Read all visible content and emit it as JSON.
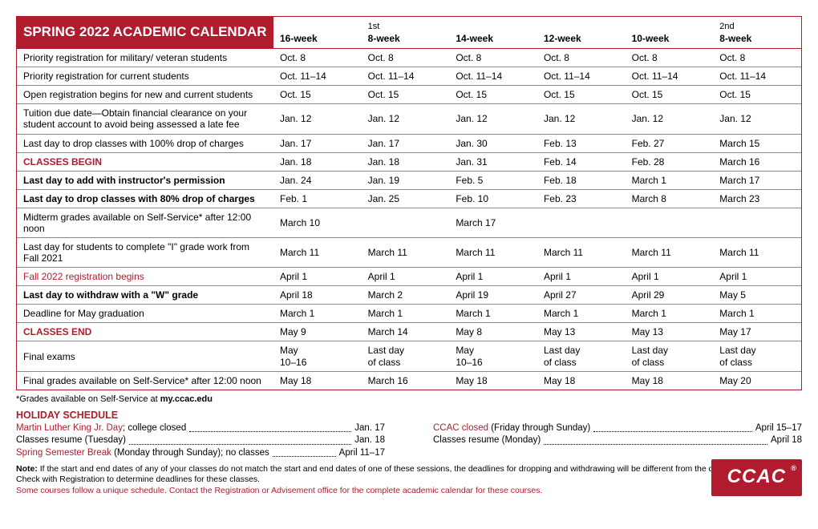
{
  "title": "SPRING 2022 ACADEMIC CALENDAR",
  "columns": [
    {
      "sup": "",
      "label": "16-week"
    },
    {
      "sup": "1st",
      "label": "8-week"
    },
    {
      "sup": "",
      "label": "14-week"
    },
    {
      "sup": "",
      "label": "12-week"
    },
    {
      "sup": "",
      "label": "10-week"
    },
    {
      "sup": "2nd",
      "label": "8-week"
    }
  ],
  "rows": [
    {
      "desc": "Priority registration for military/ veteran students",
      "vals": [
        "Oct. 8",
        "Oct. 8",
        "Oct. 8",
        "Oct. 8",
        "Oct. 8",
        "Oct. 8"
      ]
    },
    {
      "desc": "Priority registration for current students",
      "vals": [
        "Oct. 11–14",
        "Oct. 11–14",
        "Oct. 11–14",
        "Oct. 11–14",
        "Oct. 11–14",
        "Oct. 11–14"
      ]
    },
    {
      "desc": "Open registration begins for new and current students",
      "vals": [
        "Oct. 15",
        "Oct. 15",
        "Oct. 15",
        "Oct. 15",
        "Oct. 15",
        "Oct. 15"
      ]
    },
    {
      "desc": "Tuition due date—Obtain financial clearance on your student account to avoid being assessed a late fee",
      "vals": [
        "Jan. 12",
        "Jan. 12",
        "Jan. 12",
        "Jan. 12",
        "Jan. 12",
        "Jan. 12"
      ],
      "wrap": true
    },
    {
      "desc": "Last day to drop classes with 100% drop of charges",
      "vals": [
        "Jan. 17",
        "Jan. 17",
        "Jan. 30",
        "Feb. 13",
        "Feb. 27",
        "March 15"
      ]
    },
    {
      "desc": "CLASSES BEGIN",
      "style": "red-bold",
      "vals": [
        "Jan. 18",
        "Jan. 18",
        "Jan. 31",
        "Feb. 14",
        "Feb. 28",
        "March 16"
      ]
    },
    {
      "desc": "Last day to add with instructor's permission",
      "style": "bold",
      "vals": [
        "Jan. 24",
        "Jan. 19",
        "Feb. 5",
        "Feb. 18",
        "March 1",
        "March 17"
      ]
    },
    {
      "desc": "Last day to drop classes with 80% drop of charges",
      "style": "bold",
      "vals": [
        "Feb. 1",
        "Jan. 25",
        "Feb. 10",
        "Feb. 23",
        "March 8",
        "March 23"
      ]
    },
    {
      "desc": "Midterm grades available on Self-Service* after 12:00 noon",
      "vals": [
        "March 10",
        "",
        "March 17",
        "",
        "",
        ""
      ]
    },
    {
      "desc": "Last day for students to complete \"I\" grade work from Fall 2021",
      "vals": [
        "March 11",
        "March 11",
        "March 11",
        "March 11",
        "March 11",
        "March 11"
      ],
      "wrap": true
    },
    {
      "desc": "Fall 2022 registration begins",
      "style": "red-text",
      "vals": [
        "April 1",
        "April 1",
        "April 1",
        "April 1",
        "April 1",
        "April 1"
      ]
    },
    {
      "desc": "Last day to withdraw with a \"W\" grade",
      "style": "bold",
      "vals": [
        "April 18",
        "March 2",
        "April 19",
        "April 27",
        "April 29",
        "May 5"
      ]
    },
    {
      "desc": "Deadline for May graduation",
      "vals": [
        "March 1",
        "March 1",
        "March 1",
        "March 1",
        "March 1",
        "March 1"
      ]
    },
    {
      "desc": "CLASSES END",
      "style": "red-bold",
      "vals": [
        "May 9",
        "March 14",
        "May 8",
        "May 13",
        "May 13",
        "May 17"
      ]
    },
    {
      "desc": "Final exams",
      "vals": [
        "May\n10–16",
        "Last day\nof class",
        "May\n10–16",
        "Last day\nof class",
        "Last day\nof class",
        "Last day\nof class"
      ],
      "wrap": true
    },
    {
      "desc": "Final grades available on Self-Service* after 12:00 noon",
      "vals": [
        "May 18",
        "March 16",
        "May 18",
        "May 18",
        "May 18",
        "May 20"
      ],
      "last": true
    }
  ],
  "footnote_star": "*Grades available on Self-Service at ",
  "footnote_star_bold": "my.ccac.edu",
  "holiday_title": "HOLIDAY SCHEDULE",
  "holiday_left": [
    {
      "label_red": "Martin Luther King Jr. Day",
      "label_rest": "; college closed",
      "val": "Jan. 17"
    },
    {
      "label_red": "",
      "label_rest": "Classes resume (Tuesday)",
      "val": "Jan. 18"
    },
    {
      "label_red": "Spring Semester Break",
      "label_rest": " (Monday through Sunday); no classes",
      "val": "April 11–17"
    }
  ],
  "holiday_right": [
    {
      "label_red": "CCAC closed",
      "label_rest": " (Friday through Sunday)",
      "val": "April 15–17"
    },
    {
      "label_red": "",
      "label_rest": "Classes resume (Monday)",
      "val": "April 18"
    }
  ],
  "note_bold": "Note:",
  "note_text": " If the start and end dates of any of your classes do not match the start and end dates of one of these sessions, the deadlines for dropping and withdrawing will be different from the dates listed above. Check with Registration to determine deadlines for these classes.",
  "note_red": "Some courses follow a unique schedule. Contact the Registration or Advisement office for the complete academic calendar for these courses.",
  "logo": "CCAC"
}
